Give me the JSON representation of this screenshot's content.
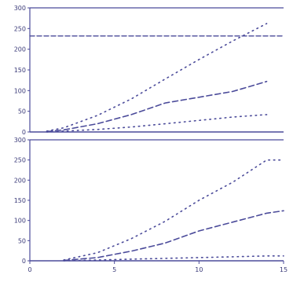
{
  "chart_data": [
    {
      "type": "line",
      "title": "",
      "xlabel": "",
      "ylabel": "",
      "xlim": [
        0,
        15
      ],
      "ylim": [
        0,
        300
      ],
      "yticks": [
        0,
        50,
        100,
        150,
        200,
        250,
        300
      ],
      "ytick_labels": [
        "0",
        "50",
        "100",
        "150",
        "200",
        "250",
        "300"
      ],
      "annotations": [],
      "series": [
        {
          "style": "dotted-upper",
          "x": [
            1,
            2,
            4,
            6,
            8,
            10,
            12,
            14
          ],
          "y": [
            2,
            10,
            40,
            80,
            128,
            175,
            220,
            262
          ]
        },
        {
          "style": "dashed-median",
          "x": [
            1,
            2,
            4,
            6,
            8,
            10,
            12,
            14
          ],
          "y": [
            1,
            5,
            20,
            42,
            70,
            84,
            98,
            122
          ]
        },
        {
          "style": "dotted-lower",
          "x": [
            1,
            2,
            4,
            6,
            8,
            10,
            12,
            14
          ],
          "y": [
            0,
            2,
            6,
            12,
            20,
            28,
            36,
            42
          ]
        },
        {
          "style": "dashed-reference",
          "x": [
            0,
            15
          ],
          "y": [
            232,
            232
          ]
        }
      ]
    },
    {
      "type": "line",
      "title": "",
      "xlabel": "",
      "ylabel": "",
      "xlim": [
        0,
        15
      ],
      "ylim": [
        0,
        300
      ],
      "xticks": [
        0,
        5,
        10,
        15
      ],
      "xtick_labels": [
        "0",
        "5",
        "10",
        "15"
      ],
      "yticks": [
        0,
        50,
        100,
        150,
        200,
        250,
        300
      ],
      "ytick_labels": [
        "0",
        "50",
        "100",
        "150",
        "200",
        "250",
        "300"
      ],
      "annotations": [],
      "series": [
        {
          "style": "dotted-upper",
          "x": [
            2,
            4,
            6,
            8,
            10,
            12,
            14,
            15
          ],
          "y": [
            2,
            20,
            55,
            98,
            150,
            195,
            250,
            250
          ]
        },
        {
          "style": "dashed-median",
          "x": [
            2,
            4,
            6,
            8,
            10,
            12,
            14,
            15
          ],
          "y": [
            1,
            8,
            24,
            44,
            74,
            96,
            118,
            124
          ]
        },
        {
          "style": "dotted-lower",
          "x": [
            2,
            4,
            6,
            8,
            10,
            12,
            14,
            15
          ],
          "y": [
            0,
            2,
            4,
            6,
            8,
            10,
            12,
            12
          ]
        }
      ]
    }
  ],
  "colors": {
    "ink": "#3a3a78",
    "line": "#4b4b9a"
  }
}
